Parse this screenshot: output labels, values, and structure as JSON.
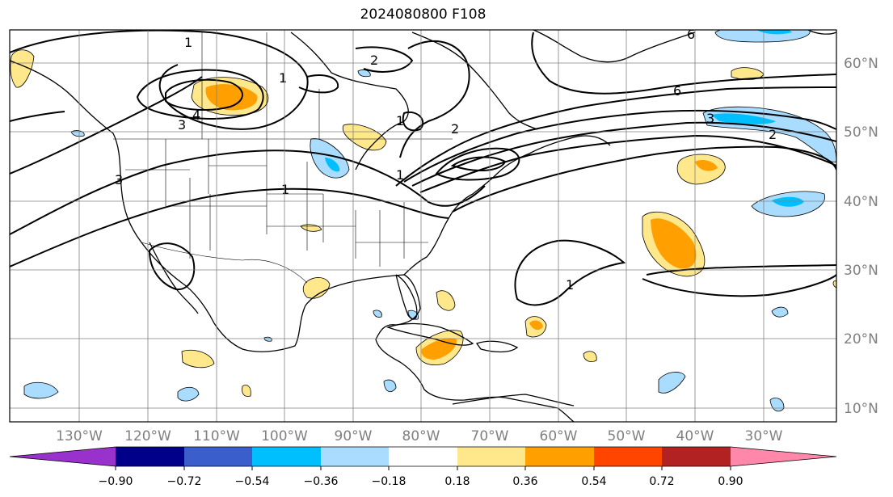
{
  "title": "2024080800 F108",
  "lat_labels": [
    "60°N",
    "50°N",
    "40°N",
    "30°N",
    "20°N",
    "10°N"
  ],
  "lon_labels": [
    "130°W",
    "120°W",
    "110°W",
    "100°W",
    "90°W",
    "80°W",
    "70°W",
    "60°W",
    "50°W",
    "40°W",
    "30°W"
  ],
  "colorbar": {
    "colors": [
      "#9932cc",
      "#00008b",
      "#3a5fcd",
      "#00bfff",
      "#aadcff",
      "#ffffff",
      "#ffe88c",
      "#ffa000",
      "#ff4500",
      "#b22222",
      "#ff88aa"
    ],
    "tick_labels": [
      "−0.90",
      "−0.72",
      "−0.54",
      "−0.36",
      "−0.18",
      "0.18",
      "0.36",
      "0.54",
      "0.72",
      "0.90"
    ]
  },
  "contour_labels": [
    "1",
    "4",
    "3",
    "3",
    "1",
    "1",
    "2",
    "1",
    "2",
    "6",
    "3",
    "2",
    "1",
    "1",
    "6"
  ],
  "colors": {
    "land_line": "#000000",
    "grid": "#808080",
    "contour": "#000000"
  }
}
